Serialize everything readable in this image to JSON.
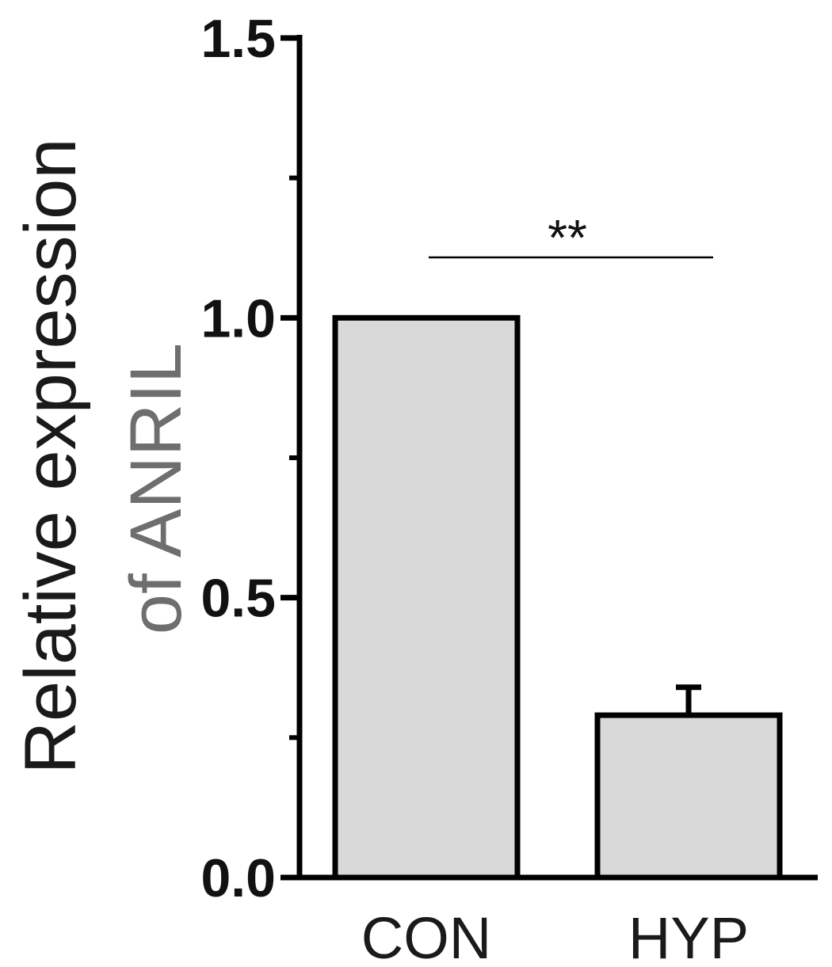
{
  "chart_data": {
    "type": "bar",
    "categories": [
      "CON",
      "HYP"
    ],
    "values": [
      1.0,
      0.29
    ],
    "errors": [
      0.0,
      0.05
    ],
    "ylabel_line1": "Relative  expression",
    "ylabel_line2": "of ANRIL",
    "xlabel": "",
    "ylim": [
      0,
      1.5
    ],
    "yticks": [
      0.0,
      0.5,
      1.0,
      1.5
    ],
    "ytick_labels": [
      "0.0",
      "0.5",
      "1.0",
      "1.5"
    ],
    "minor_yticks": [
      0.25,
      0.75,
      1.25
    ],
    "significance": {
      "label": "**",
      "between": [
        "CON",
        "HYP"
      ]
    },
    "bar_fill": "#d9d9d9",
    "bar_stroke": "#000000",
    "grid": false,
    "legend": "none"
  }
}
